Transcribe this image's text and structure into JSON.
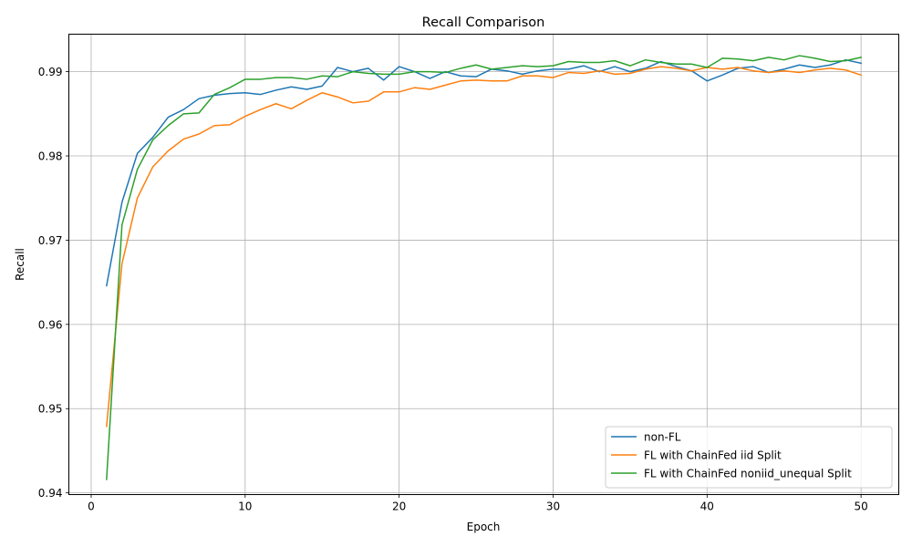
{
  "chart_data": {
    "type": "line",
    "title": "Recall Comparison",
    "xlabel": "Epoch",
    "ylabel": "Recall",
    "xlim": [
      -1.45,
      52.45
    ],
    "ylim": [
      0.9398,
      0.99445
    ],
    "grid": true,
    "legend_position": "lower-right",
    "x_ticks": [
      0,
      10,
      20,
      30,
      40,
      50
    ],
    "y_ticks": [
      0.94,
      0.95,
      0.96,
      0.97,
      0.98,
      0.99
    ],
    "y_tick_labels": [
      "0.94",
      "0.95",
      "0.96",
      "0.97",
      "0.98",
      "0.99"
    ],
    "x": [
      1,
      2,
      3,
      4,
      5,
      6,
      7,
      8,
      9,
      10,
      11,
      12,
      13,
      14,
      15,
      16,
      17,
      18,
      19,
      20,
      21,
      22,
      23,
      24,
      25,
      26,
      27,
      28,
      29,
      30,
      31,
      32,
      33,
      34,
      35,
      36,
      37,
      38,
      39,
      40,
      41,
      42,
      43,
      44,
      45,
      46,
      47,
      48,
      49,
      50
    ],
    "series": [
      {
        "name": "non-FL",
        "color": "#1f77b4",
        "values": [
          0.9646,
          0.9745,
          0.9803,
          0.9822,
          0.9846,
          0.9855,
          0.9868,
          0.9872,
          0.9874,
          0.9875,
          0.9873,
          0.9878,
          0.9882,
          0.9879,
          0.9883,
          0.9905,
          0.99,
          0.9904,
          0.989,
          0.9906,
          0.99,
          0.9892,
          0.99,
          0.9895,
          0.9894,
          0.9903,
          0.9901,
          0.9897,
          0.9901,
          0.9903,
          0.9903,
          0.9907,
          0.99,
          0.9906,
          0.99,
          0.9904,
          0.9912,
          0.9906,
          0.9901,
          0.9889,
          0.9896,
          0.9904,
          0.9906,
          0.9899,
          0.9903,
          0.9908,
          0.9905,
          0.9908,
          0.9914,
          0.991
        ]
      },
      {
        "name": "FL with ChainFed iid Split",
        "color": "#ff7f0e",
        "values": [
          0.9479,
          0.9672,
          0.975,
          0.9787,
          0.9806,
          0.982,
          0.9826,
          0.9836,
          0.9837,
          0.9847,
          0.9855,
          0.9862,
          0.9856,
          0.9866,
          0.9875,
          0.987,
          0.9863,
          0.9865,
          0.9876,
          0.9876,
          0.9881,
          0.9879,
          0.9884,
          0.9889,
          0.989,
          0.9889,
          0.9889,
          0.9895,
          0.9895,
          0.9893,
          0.9899,
          0.9898,
          0.9901,
          0.9897,
          0.9898,
          0.9903,
          0.9906,
          0.9904,
          0.9901,
          0.9905,
          0.9903,
          0.9905,
          0.9901,
          0.9899,
          0.9901,
          0.9899,
          0.9902,
          0.9904,
          0.9902,
          0.9896
        ]
      },
      {
        "name": "FL with ChainFed noniid_unequal Split",
        "color": "#2ca02c",
        "values": [
          0.9416,
          0.9718,
          0.9784,
          0.9819,
          0.9836,
          0.985,
          0.9851,
          0.9873,
          0.9881,
          0.9891,
          0.9891,
          0.9893,
          0.9893,
          0.9891,
          0.9895,
          0.9894,
          0.99,
          0.9898,
          0.9897,
          0.9897,
          0.99,
          0.99,
          0.9899,
          0.9904,
          0.9908,
          0.9903,
          0.9905,
          0.9907,
          0.9906,
          0.9907,
          0.9912,
          0.9911,
          0.9911,
          0.9913,
          0.9907,
          0.9914,
          0.9911,
          0.9909,
          0.9909,
          0.9905,
          0.9916,
          0.9915,
          0.9913,
          0.9917,
          0.9914,
          0.9919,
          0.9916,
          0.9912,
          0.9913,
          0.9917
        ]
      }
    ]
  }
}
